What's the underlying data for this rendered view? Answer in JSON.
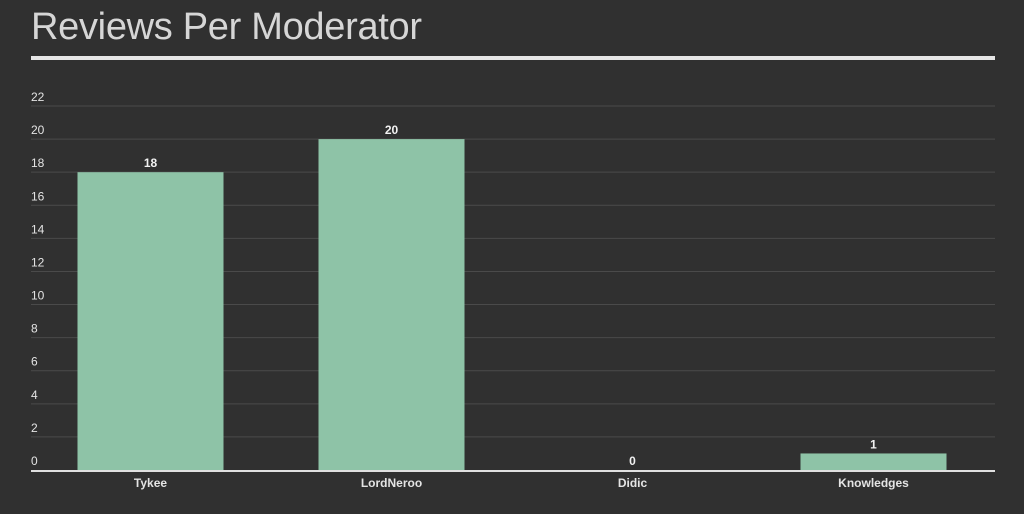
{
  "chart_data": {
    "type": "bar",
    "title": "Reviews Per Moderator",
    "categories": [
      "Tykee",
      "LordNeroo",
      "Didic",
      "Knowledges"
    ],
    "values": [
      18,
      20,
      0,
      1
    ],
    "data_labels": [
      "18",
      "20",
      "0",
      "1"
    ],
    "yticks": [
      "0",
      "2",
      "4",
      "6",
      "8",
      "10",
      "12",
      "14",
      "16",
      "18",
      "20",
      "22"
    ],
    "ylim": [
      0,
      22
    ],
    "xlabel": "",
    "ylabel": "",
    "grid": true,
    "legend": "none",
    "colors": {
      "bar": "#8ec3a7",
      "background": "#303030",
      "text": "#e4e4e4"
    }
  }
}
